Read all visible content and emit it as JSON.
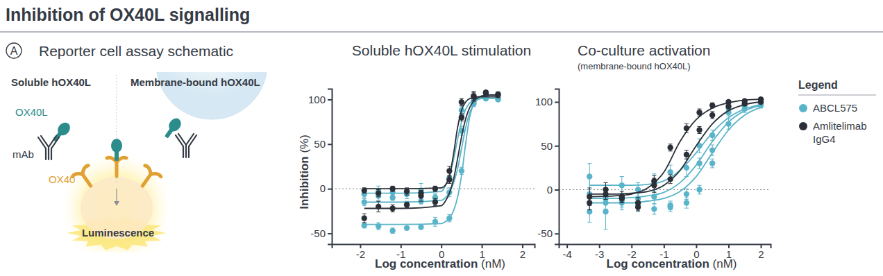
{
  "title": "Inhibition of OX40L signalling",
  "schematic": {
    "panel": "A",
    "title": "Reporter cell assay schematic",
    "left_heading": "Soluble hOX40L",
    "right_heading": "Membrane-bound hOX40L",
    "ligand_label": "OX40L",
    "antibody_label": "mAb",
    "receptor_label": "OX40",
    "readout_label": "Luminescence"
  },
  "legend_title": "Legend",
  "chart_data": [
    {
      "type": "scatter",
      "title": "Soluble hOX40L stimulation",
      "x_label": "Log concentration (nM)",
      "y_label": "Inhibition (%)",
      "xlim": [
        -2.7,
        2.3
      ],
      "ylim": [
        -62,
        112
      ],
      "xticks": [
        -2,
        -1,
        0,
        1,
        2
      ],
      "yticks": [
        -50,
        0,
        50,
        100
      ],
      "series": [
        {
          "name": "ABCL575",
          "color": "#5ab4c9",
          "type": "scatter",
          "marker": "circle",
          "x": [
            -1.9,
            -1.55,
            -1.2,
            -0.85,
            -0.5,
            -0.15,
            0.2,
            0.5,
            0.8,
            1.1,
            1.4
          ],
          "values": [
            -41,
            -42,
            -47,
            -44,
            -43,
            -37,
            -33,
            20,
            97,
            103,
            100
          ],
          "error": [
            3,
            4,
            3,
            2,
            2,
            5,
            4,
            4,
            3,
            2,
            2
          ]
        },
        {
          "name": "ABCL575",
          "color": "#5ab4c9",
          "type": "line",
          "line_style": "solid",
          "x": [
            -1.9,
            -1,
            0,
            0.1,
            0.2,
            0.3,
            0.4,
            0.5,
            0.6,
            0.7,
            0.8,
            0.9,
            1.0,
            1.2,
            1.4
          ],
          "values": [
            -40,
            -40,
            -39,
            -37,
            -33,
            -25,
            -10,
            15,
            50,
            80,
            95,
            101,
            104,
            105,
            105
          ]
        },
        {
          "name": "ABCL575",
          "color": "#5ab4c9",
          "type": "scatter",
          "marker": "circle",
          "x": [
            -1.9,
            -1.55,
            -1.2,
            -0.85,
            -0.5,
            -0.15,
            0.2,
            0.5,
            0.8,
            1.1,
            1.4
          ],
          "values": [
            -15,
            -8,
            -10,
            -18,
            -14,
            -10,
            -4,
            65,
            95,
            101,
            102
          ],
          "error": [
            4,
            5,
            3,
            4,
            3,
            4,
            5,
            5,
            3,
            2,
            2
          ]
        },
        {
          "name": "ABCL575",
          "color": "#5ab4c9",
          "type": "line",
          "line_style": "solid",
          "x": [
            -1.9,
            -1,
            0,
            0.1,
            0.2,
            0.3,
            0.4,
            0.5,
            0.6,
            0.7,
            0.8,
            0.9,
            1.0,
            1.2,
            1.4
          ],
          "values": [
            -15,
            -15,
            -13,
            -10,
            -4,
            6,
            22,
            45,
            68,
            85,
            95,
            100,
            102,
            103,
            103
          ]
        },
        {
          "name": "ABCL575",
          "color": "#5ab4c9",
          "type": "scatter",
          "marker": "circle",
          "x": [
            -1.9,
            -1.55,
            -1.2,
            -0.85,
            -0.5,
            -0.15,
            0.2,
            0.5,
            0.8,
            1.1,
            1.4
          ],
          "values": [
            -6,
            -3,
            -4,
            -6,
            -2,
            -10,
            12,
            88,
            100,
            103,
            101
          ],
          "error": [
            4,
            6,
            4,
            5,
            8,
            4,
            6,
            4,
            3,
            2,
            2
          ]
        },
        {
          "name": "ABCL575",
          "color": "#5ab4c9",
          "type": "line",
          "line_style": "solid",
          "x": [
            -1.9,
            -1,
            0,
            0.1,
            0.2,
            0.3,
            0.4,
            0.5,
            0.6,
            0.7,
            0.8,
            0.9,
            1.0,
            1.2,
            1.4
          ],
          "values": [
            -5,
            -5,
            -3,
            3,
            14,
            32,
            55,
            75,
            89,
            96,
            99,
            100,
            101,
            101,
            101
          ]
        },
        {
          "name": "Amlitelimab IgG4",
          "color": "#2b2f38",
          "type": "scatter",
          "marker": "circle",
          "x": [
            -1.9,
            -1.55,
            -1.2,
            -0.85,
            -0.5,
            -0.15,
            0.2,
            0.5,
            0.8,
            1.1,
            1.4
          ],
          "values": [
            -2,
            -5,
            0,
            -3,
            -8,
            0,
            20,
            97,
            104,
            107,
            105
          ],
          "error": [
            3,
            4,
            3,
            4,
            6,
            3,
            5,
            4,
            5,
            2,
            3
          ]
        },
        {
          "name": "Amlitelimab IgG4",
          "color": "#2b2f38",
          "type": "line",
          "line_style": "solid",
          "x": [
            -1.9,
            -1,
            0,
            0.1,
            0.2,
            0.3,
            0.4,
            0.5,
            0.6,
            0.7,
            0.8,
            0.9,
            1.0,
            1.2,
            1.4
          ],
          "values": [
            0,
            0,
            1,
            4,
            14,
            38,
            68,
            88,
            97,
            101,
            102,
            103,
            103,
            103,
            103
          ]
        },
        {
          "name": "Amlitelimab IgG4",
          "color": "#2b2f38",
          "type": "scatter",
          "marker": "circle",
          "x": [
            -1.9,
            -1.55,
            -1.2,
            -0.85,
            -0.5,
            -0.15,
            0.2,
            0.5,
            0.8,
            1.1,
            1.4
          ],
          "values": [
            -33,
            -20,
            -22,
            -18,
            -5,
            -15,
            10,
            80,
            103,
            108,
            106
          ],
          "error": [
            5,
            6,
            4,
            3,
            3,
            4,
            4,
            4,
            5,
            2,
            2
          ]
        },
        {
          "name": "Amlitelimab IgG4",
          "color": "#2b2f38",
          "type": "line",
          "line_style": "solid",
          "x": [
            -1.9,
            -1,
            0,
            0.1,
            0.2,
            0.3,
            0.4,
            0.5,
            0.6,
            0.7,
            0.8,
            0.9,
            1.0,
            1.2,
            1.4
          ],
          "values": [
            -22,
            -22,
            -19,
            -14,
            -5,
            10,
            33,
            58,
            78,
            91,
            98,
            102,
            104,
            105,
            105
          ]
        }
      ]
    },
    {
      "type": "scatter",
      "title": "Co-culture activation",
      "subtitle": "(membrane-bound hOX40L)",
      "x_label": "Log concentration (nM)",
      "legend": "right",
      "xlim": [
        -4.25,
        2.3
      ],
      "ylim": [
        -62,
        115
      ],
      "xticks": [
        -4,
        -3,
        -2,
        -1,
        0,
        1,
        2
      ],
      "yticks": [
        -50,
        0,
        50,
        100
      ],
      "series": [
        {
          "name": "ABCL575",
          "color": "#5ab4c9",
          "type": "scatter",
          "marker": "circle",
          "x": [
            -3.3,
            -2.8,
            -2.3,
            -1.8,
            -1.3,
            -0.8,
            -0.3,
            0.1,
            0.5,
            1.0,
            1.5,
            2.0
          ],
          "values": [
            15,
            -25,
            5,
            0,
            8,
            20,
            25,
            50,
            62,
            93,
            97,
            97
          ],
          "error": [
            15,
            20,
            10,
            8,
            10,
            8,
            10,
            8,
            6,
            3,
            2,
            2
          ]
        },
        {
          "name": "ABCL575",
          "color": "#5ab4c9",
          "type": "line",
          "line_style": "solid",
          "x": [
            -3.3,
            -2.5,
            -2,
            -1.5,
            -1,
            -0.5,
            0,
            0.5,
            1,
            1.5,
            2
          ],
          "values": [
            5,
            5,
            5,
            6,
            10,
            22,
            42,
            65,
            82,
            92,
            97
          ]
        },
        {
          "name": "ABCL575",
          "color": "#5ab4c9",
          "type": "scatter",
          "marker": "circle",
          "x": [
            -3.3,
            -2.8,
            -2.3,
            -1.8,
            -1.3,
            -0.8,
            -0.3,
            0.1,
            0.5,
            1.0,
            1.5,
            2.0
          ],
          "values": [
            -5,
            -10,
            -15,
            -10,
            -8,
            -18,
            -5,
            30,
            45,
            88,
            95,
            98
          ],
          "error": [
            20,
            12,
            8,
            6,
            8,
            5,
            6,
            6,
            6,
            4,
            3,
            2
          ]
        },
        {
          "name": "ABCL575",
          "color": "#5ab4c9",
          "type": "line",
          "line_style": "solid",
          "x": [
            -3.3,
            -2.5,
            -2,
            -1.5,
            -1,
            -0.5,
            0,
            0.5,
            1,
            1.5,
            2
          ],
          "values": [
            -10,
            -10,
            -9,
            -7,
            -3,
            8,
            28,
            55,
            77,
            90,
            96
          ]
        },
        {
          "name": "ABCL575",
          "color": "#5ab4c9",
          "type": "scatter",
          "marker": "circle",
          "x": [
            -3.3,
            -2.8,
            -2.3,
            -1.8,
            -1.3,
            -0.8,
            -0.3,
            0.1,
            0.5,
            1.0,
            1.5,
            2.0
          ],
          "values": [
            -25,
            -15,
            -12,
            -18,
            -22,
            -20,
            -15,
            0,
            30,
            75,
            92,
            96
          ],
          "error": [
            12,
            10,
            8,
            7,
            6,
            5,
            6,
            5,
            5,
            6,
            4,
            3
          ]
        },
        {
          "name": "ABCL575",
          "color": "#5ab4c9",
          "type": "line",
          "line_style": "solid",
          "x": [
            -3.3,
            -2.5,
            -2,
            -1.5,
            -1,
            -0.5,
            0,
            0.5,
            1,
            1.5,
            2
          ],
          "values": [
            -15,
            -15,
            -15,
            -13,
            -10,
            -2,
            15,
            42,
            68,
            85,
            94
          ]
        },
        {
          "name": "Amlitelimab IgG4",
          "color": "#2b2f38",
          "type": "scatter",
          "marker": "circle",
          "x": [
            -3.3,
            -2.8,
            -2.3,
            -1.8,
            -1.3,
            -0.8,
            -0.3,
            0.1,
            0.5,
            1.0,
            1.5,
            2.0
          ],
          "values": [
            -15,
            -5,
            -10,
            -20,
            10,
            48,
            70,
            88,
            96,
            100,
            101,
            103
          ],
          "error": [
            8,
            6,
            5,
            4,
            6,
            4,
            5,
            4,
            3,
            2,
            2,
            2
          ]
        },
        {
          "name": "Amlitelimab IgG4",
          "color": "#2b2f38",
          "type": "line",
          "line_style": "solid",
          "x": [
            -3.3,
            -2.5,
            -2,
            -1.5,
            -1,
            -0.5,
            0,
            0.5,
            1,
            1.5,
            2
          ],
          "values": [
            -8,
            -7,
            -5,
            2,
            20,
            55,
            80,
            93,
            99,
            102,
            103
          ]
        },
        {
          "name": "Amlitelimab IgG4",
          "color": "#2b2f38",
          "type": "scatter",
          "marker": "circle",
          "x": [
            -3.3,
            -2.8,
            -2.3,
            -1.8,
            -1.3,
            -0.8,
            -0.3,
            0.1,
            0.5,
            1.0,
            1.5,
            2.0
          ],
          "values": [
            -8,
            0,
            -8,
            -15,
            5,
            12,
            40,
            68,
            85,
            95,
            98,
            100
          ],
          "error": [
            10,
            8,
            6,
            6,
            8,
            5,
            5,
            4,
            4,
            3,
            2,
            2
          ]
        },
        {
          "name": "Amlitelimab IgG4",
          "color": "#2b2f38",
          "type": "line",
          "line_style": "solid",
          "x": [
            -3.3,
            -2.5,
            -2,
            -1.5,
            -1,
            -0.5,
            0,
            0.5,
            1,
            1.5,
            2
          ],
          "values": [
            -5,
            -5,
            -4,
            -2,
            5,
            22,
            50,
            75,
            90,
            97,
            100
          ]
        }
      ]
    }
  ]
}
